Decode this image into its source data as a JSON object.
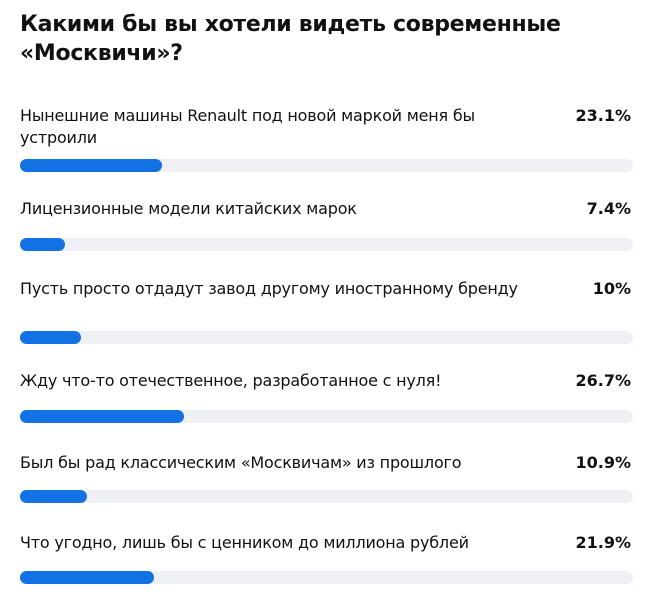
{
  "chart_data": {
    "type": "bar",
    "orientation": "horizontal",
    "title": "Какими бы вы хотели видеть современные «Москвичи»?",
    "bar_color": "#1272e4",
    "track_color": "#eef0f3",
    "categories": [
      "Нынешние машины Renault под новой маркой меня бы устроили",
      "Лицензионные модели китайских марок",
      "Пусть просто отдадут завод другому иностранному бренду",
      "Жду что-то отечественное, разработанное с нуля!",
      "Был бы рад классическим «Москвичам» из прошлого",
      "Что угодно, лишь бы с ценником до миллиона рублей"
    ],
    "values": [
      23.1,
      7.4,
      10,
      26.7,
      10.9,
      21.9
    ],
    "value_labels": [
      "23.1%",
      "7.4%",
      "10%",
      "26.7%",
      "10.9%",
      "21.9%"
    ],
    "xlim": [
      0,
      100
    ],
    "unit": "%"
  }
}
